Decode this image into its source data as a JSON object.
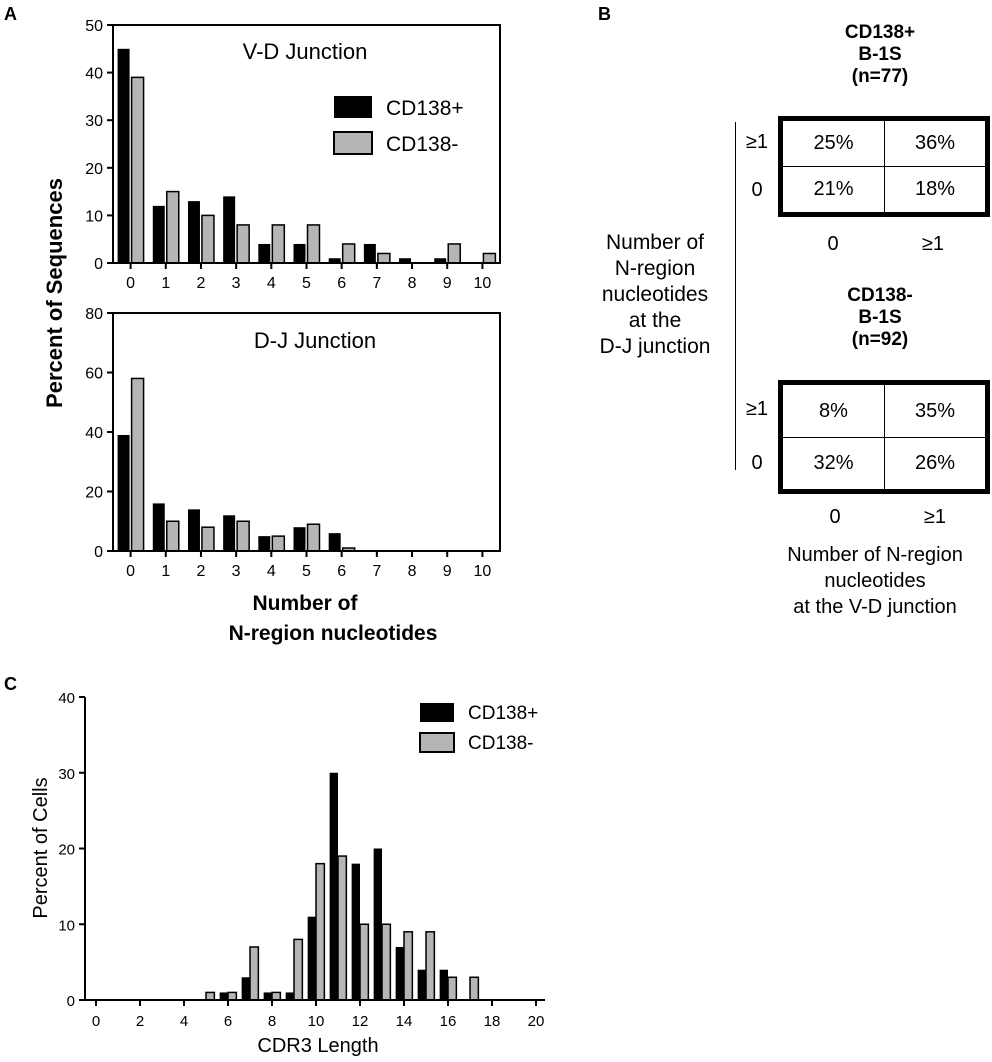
{
  "panel_labels": {
    "a": "A",
    "b": "B",
    "c": "C"
  },
  "colors": {
    "series1": "#000000",
    "series2": "#b5b5b5",
    "axis": "#000000"
  },
  "panel_a": {
    "ylabel": "Percent of Sequences",
    "xlabel_line1": "Number of",
    "xlabel_line2": "N-region nucleotides"
  },
  "panel_b": {
    "ylabel_lines": [
      "Number of",
      "N-region",
      "nucleotides",
      "at the",
      "D-J junction"
    ],
    "xlabel_lines": [
      "Number of N-region",
      "nucleotides",
      "at the V-D junction"
    ],
    "tables": [
      {
        "header_lines": [
          "CD138+",
          "B-1S",
          "(n=77)"
        ],
        "row_labels": [
          "≥1",
          "0"
        ],
        "col_labels": [
          "0",
          "≥1"
        ],
        "cells": [
          [
            "25%",
            "36%"
          ],
          [
            "21%",
            "18%"
          ]
        ]
      },
      {
        "header_lines": [
          "CD138-",
          "B-1S",
          "(n=92)"
        ],
        "row_labels": [
          "≥1",
          "0"
        ],
        "col_labels": [
          "0",
          "≥1"
        ],
        "cells": [
          [
            "8%",
            "35%"
          ],
          [
            "32%",
            "26%"
          ]
        ]
      }
    ]
  },
  "chart_data": [
    {
      "type": "bar",
      "panel": "A",
      "title": "V-D Junction",
      "xlabel": "Number of N-region nucleotides",
      "ylabel": "Percent of Sequences",
      "categories": [
        "0",
        "1",
        "2",
        "3",
        "4",
        "5",
        "6",
        "7",
        "8",
        "9",
        "10"
      ],
      "series": [
        {
          "name": "CD138+",
          "values": [
            45,
            12,
            13,
            14,
            4,
            4,
            1,
            4,
            1,
            1,
            0
          ]
        },
        {
          "name": "CD138-",
          "values": [
            39,
            15,
            10,
            8,
            8,
            8,
            4,
            2,
            0,
            4,
            2
          ]
        }
      ],
      "ylim": [
        0,
        50
      ],
      "yticks": [
        0,
        10,
        20,
        30,
        40,
        50
      ],
      "legend": "top-right"
    },
    {
      "type": "bar",
      "panel": "A",
      "title": "D-J Junction",
      "xlabel": "Number of N-region nucleotides",
      "ylabel": "Percent of Sequences",
      "categories": [
        "0",
        "1",
        "2",
        "3",
        "4",
        "5",
        "6",
        "7",
        "8",
        "9",
        "10"
      ],
      "series": [
        {
          "name": "CD138+",
          "values": [
            39,
            16,
            14,
            12,
            5,
            8,
            6,
            0,
            0,
            0,
            0
          ]
        },
        {
          "name": "CD138-",
          "values": [
            58,
            10,
            8,
            10,
            5,
            9,
            1,
            0,
            0,
            0,
            0
          ]
        }
      ],
      "ylim": [
        0,
        80
      ],
      "yticks": [
        0,
        20,
        40,
        60,
        80
      ]
    },
    {
      "type": "bar",
      "panel": "C",
      "title": "",
      "xlabel": "CDR3 Length",
      "ylabel": "Percent of Cells",
      "x": [
        5,
        6,
        7,
        8,
        9,
        10,
        11,
        12,
        13,
        14,
        15,
        16,
        17
      ],
      "series": [
        {
          "name": "CD138+",
          "values": [
            0,
            1,
            3,
            1,
            1,
            11,
            30,
            18,
            20,
            7,
            4,
            4,
            0
          ]
        },
        {
          "name": "CD138-",
          "values": [
            1,
            1,
            7,
            1,
            8,
            18,
            19,
            10,
            10,
            9,
            9,
            3,
            3
          ]
        }
      ],
      "xlim": [
        0,
        20
      ],
      "xticks": [
        0,
        2,
        4,
        6,
        8,
        10,
        12,
        14,
        16,
        18,
        20
      ],
      "ylim": [
        0,
        40
      ],
      "yticks": [
        0,
        10,
        20,
        30,
        40
      ],
      "legend": "top-right"
    }
  ]
}
